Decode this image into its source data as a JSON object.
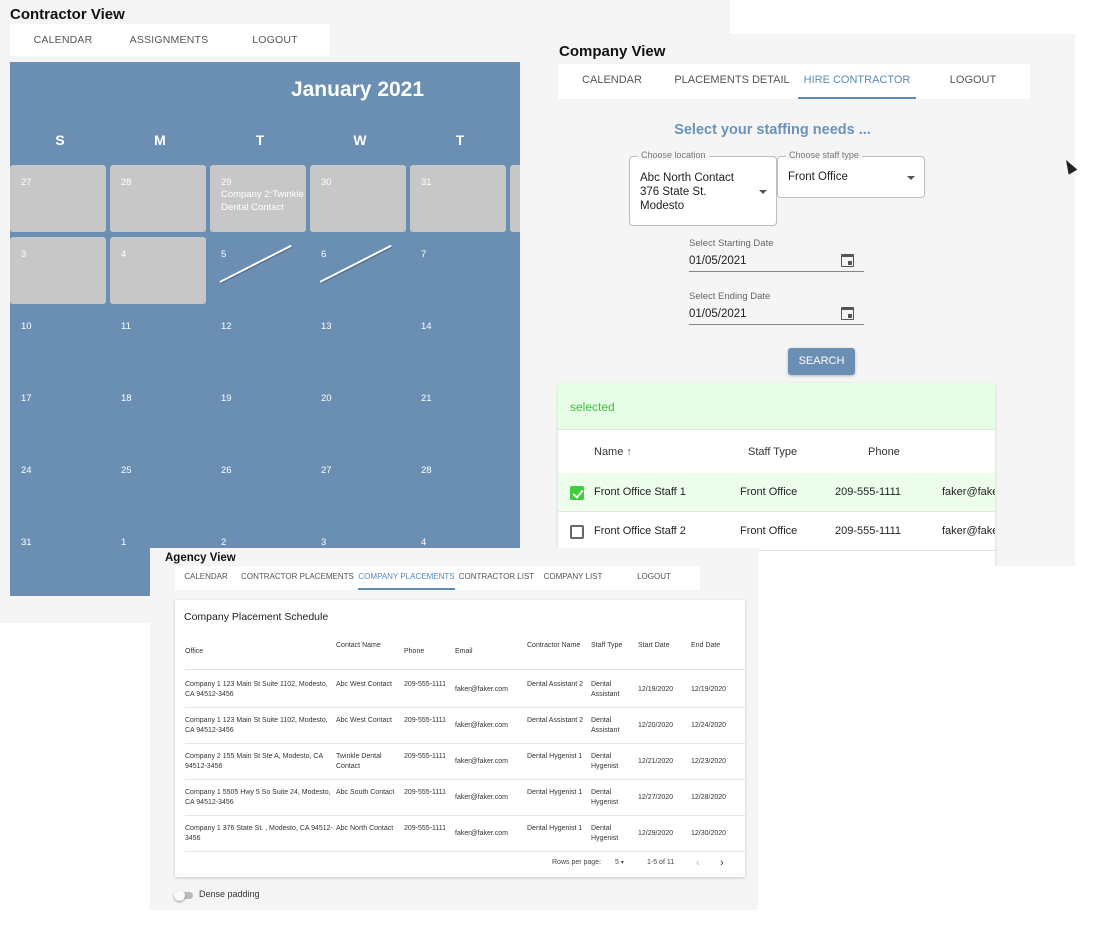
{
  "contractor": {
    "title": "Contractor View",
    "nav": [
      "CALENDAR",
      "ASSIGNMENTS",
      "LOGOUT"
    ],
    "calendar": {
      "month_title": "January 2021",
      "weekdays": [
        "S",
        "M",
        "T",
        "W",
        "T"
      ],
      "weeks": [
        [
          {
            "d": "27",
            "grey": true
          },
          {
            "d": "28",
            "grey": true
          },
          {
            "d": "29",
            "grey": true,
            "event": "Company 2:Twinkle Dental Contact"
          },
          {
            "d": "30",
            "grey": true
          },
          {
            "d": "31",
            "grey": true
          },
          {
            "d": "",
            "grey": true
          }
        ],
        [
          {
            "d": "3",
            "grey": true
          },
          {
            "d": "4",
            "grey": true
          },
          {
            "d": "5",
            "slash": true
          },
          {
            "d": "6",
            "slash": true
          },
          {
            "d": "7"
          },
          {
            "d": ""
          }
        ],
        [
          {
            "d": "10"
          },
          {
            "d": "11"
          },
          {
            "d": "12"
          },
          {
            "d": "13"
          },
          {
            "d": "14"
          },
          {
            "d": ""
          }
        ],
        [
          {
            "d": "17"
          },
          {
            "d": "18"
          },
          {
            "d": "19"
          },
          {
            "d": "20"
          },
          {
            "d": "21"
          },
          {
            "d": ""
          }
        ],
        [
          {
            "d": "24"
          },
          {
            "d": "25"
          },
          {
            "d": "26"
          },
          {
            "d": "27"
          },
          {
            "d": "28"
          },
          {
            "d": ""
          }
        ],
        [
          {
            "d": "31"
          },
          {
            "d": "1"
          },
          {
            "d": "2"
          },
          {
            "d": "3"
          },
          {
            "d": "4"
          },
          {
            "d": ""
          }
        ]
      ]
    }
  },
  "company": {
    "title": "Company View",
    "nav": [
      "CALENDAR",
      "PLACEMENTS DETAIL",
      "HIRE CONTRACTOR",
      "LOGOUT"
    ],
    "active_tab": "HIRE CONTRACTOR",
    "heading": "Select your staffing needs ...",
    "location": {
      "label": "Choose location",
      "value": "Abc North Contact 376 State St. Modesto"
    },
    "staff_type": {
      "label": "Choose staff type",
      "value": "Front Office"
    },
    "start_date": {
      "label": "Select Starting Date",
      "value": "01/05/2021"
    },
    "end_date": {
      "label": "Select Ending Date",
      "value": "01/05/2021"
    },
    "search_label": "SEARCH",
    "selected_label": "selected",
    "results_headers": {
      "name": "Name",
      "sort_icon": "arrow-up-icon",
      "staff_type": "Staff Type",
      "phone": "Phone"
    },
    "results": [
      {
        "checked": true,
        "name": "Front Office Staff 1",
        "type": "Front Office",
        "phone": "209-555-1111",
        "email": "faker@fake"
      },
      {
        "checked": false,
        "name": "Front Office Staff 2",
        "type": "Front Office",
        "phone": "209-555-1111",
        "email": "faker@fake"
      }
    ],
    "accent": "#5b8ab5"
  },
  "agency": {
    "title": "Agency View",
    "nav": [
      "CALENDAR",
      "CONTRACTOR PLACEMENTS",
      "COMPANY PLACEMENTS",
      "CONTRACTOR LIST",
      "COMPANY LIST",
      "LOGOUT"
    ],
    "active_tab": "COMPANY PLACEMENTS",
    "table_title": "Company Placement Schedule",
    "columns": [
      "Office",
      "Contact Name",
      "Phone",
      "Email",
      "Contractor Name",
      "Staff Type",
      "Start Date",
      "End Date"
    ],
    "rows": [
      {
        "office": "Company 1 123 Main St Suite 1102, Modesto, CA 94512-3456",
        "contact": "Abc West Contact",
        "phone": "209-555-1111",
        "email": "faker@faker.com",
        "contractor": "Dental Assistant 2",
        "staff": "Dental Assistant",
        "start": "12/19/2020",
        "end": "12/19/2020"
      },
      {
        "office": "Company 1 123 Main St Suite 1102, Modesto, CA 94512-3456",
        "contact": "Abc West Contact",
        "phone": "209-555-1111",
        "email": "faker@faker.com",
        "contractor": "Dental Assistant 2",
        "staff": "Dental Assistant",
        "start": "12/20/2020",
        "end": "12/24/2020"
      },
      {
        "office": "Company 2 155 Main St Ste A, Modesto, CA 94512-3456",
        "contact": "Twinkle Dental Contact",
        "phone": "209-555-1111",
        "email": "faker@faker.com",
        "contractor": "Dental Hygenist 1",
        "staff": "Dental Hygenist",
        "start": "12/21/2020",
        "end": "12/23/2020"
      },
      {
        "office": "Company 1 5505 Hwy 5 So Suite 24, Modesto, CA 94512-3456",
        "contact": "Abc South Contact",
        "phone": "209-555-1111",
        "email": "faker@faker.com",
        "contractor": "Dental Hygenist 1",
        "staff": "Dental Hygenist",
        "start": "12/27/2020",
        "end": "12/28/2020"
      },
      {
        "office": "Company 1 376 State St. , Modesto, CA 94512-3456",
        "contact": "Abc North Contact",
        "phone": "209-555-1111",
        "email": "faker@faker.com",
        "contractor": "Dental Hygenist 1",
        "staff": "Dental Hygenist",
        "start": "12/29/2020",
        "end": "12/30/2020"
      }
    ],
    "pager": {
      "rows_label": "Rows per page:",
      "rows_value": "5",
      "range": "1-5 of 11"
    },
    "dense_label": "Dense padding"
  }
}
